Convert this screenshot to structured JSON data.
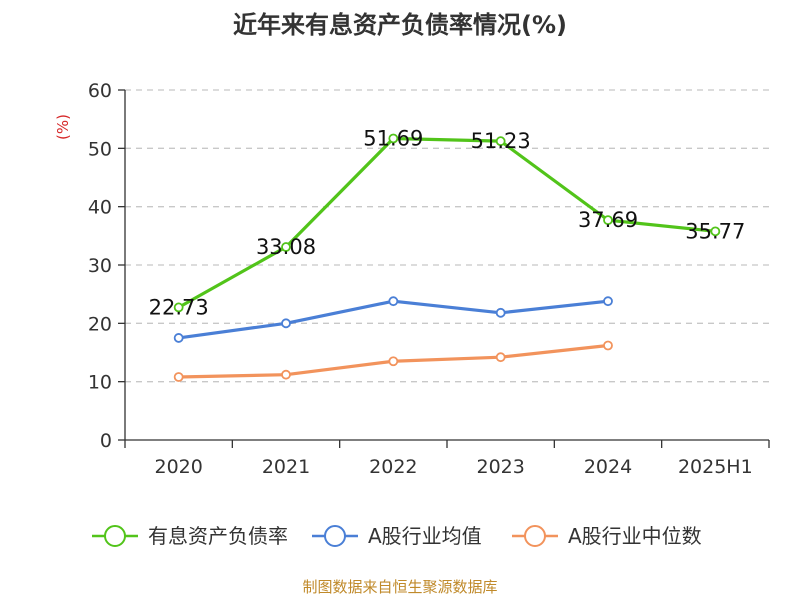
{
  "chart_data": {
    "type": "line",
    "title": "近年来有息资产负债率情况(%)",
    "ylabel": "(%)",
    "xlabel": "",
    "ylim": [
      0,
      60
    ],
    "yticks": [
      0,
      10,
      20,
      30,
      40,
      50,
      60
    ],
    "categories": [
      "2020",
      "2021",
      "2022",
      "2023",
      "2024",
      "2025H1"
    ],
    "grid": true,
    "legend_position": "bottom",
    "series": [
      {
        "name": "有息资产负债率",
        "color": "#52c41a",
        "values": [
          22.73,
          33.08,
          51.69,
          51.23,
          37.69,
          35.77
        ],
        "labels": [
          "22.73",
          "33.08",
          "51.69",
          "51.23",
          "37.69",
          "35.77"
        ]
      },
      {
        "name": "A股行业均值",
        "color": "#4a7fd6",
        "values": [
          17.5,
          20.0,
          23.8,
          21.8,
          23.8,
          null
        ]
      },
      {
        "name": "A股行业中位数",
        "color": "#f2935c",
        "values": [
          10.8,
          11.2,
          13.5,
          14.2,
          16.2,
          null
        ]
      }
    ],
    "source": "制图数据来自恒生聚源数据库"
  }
}
